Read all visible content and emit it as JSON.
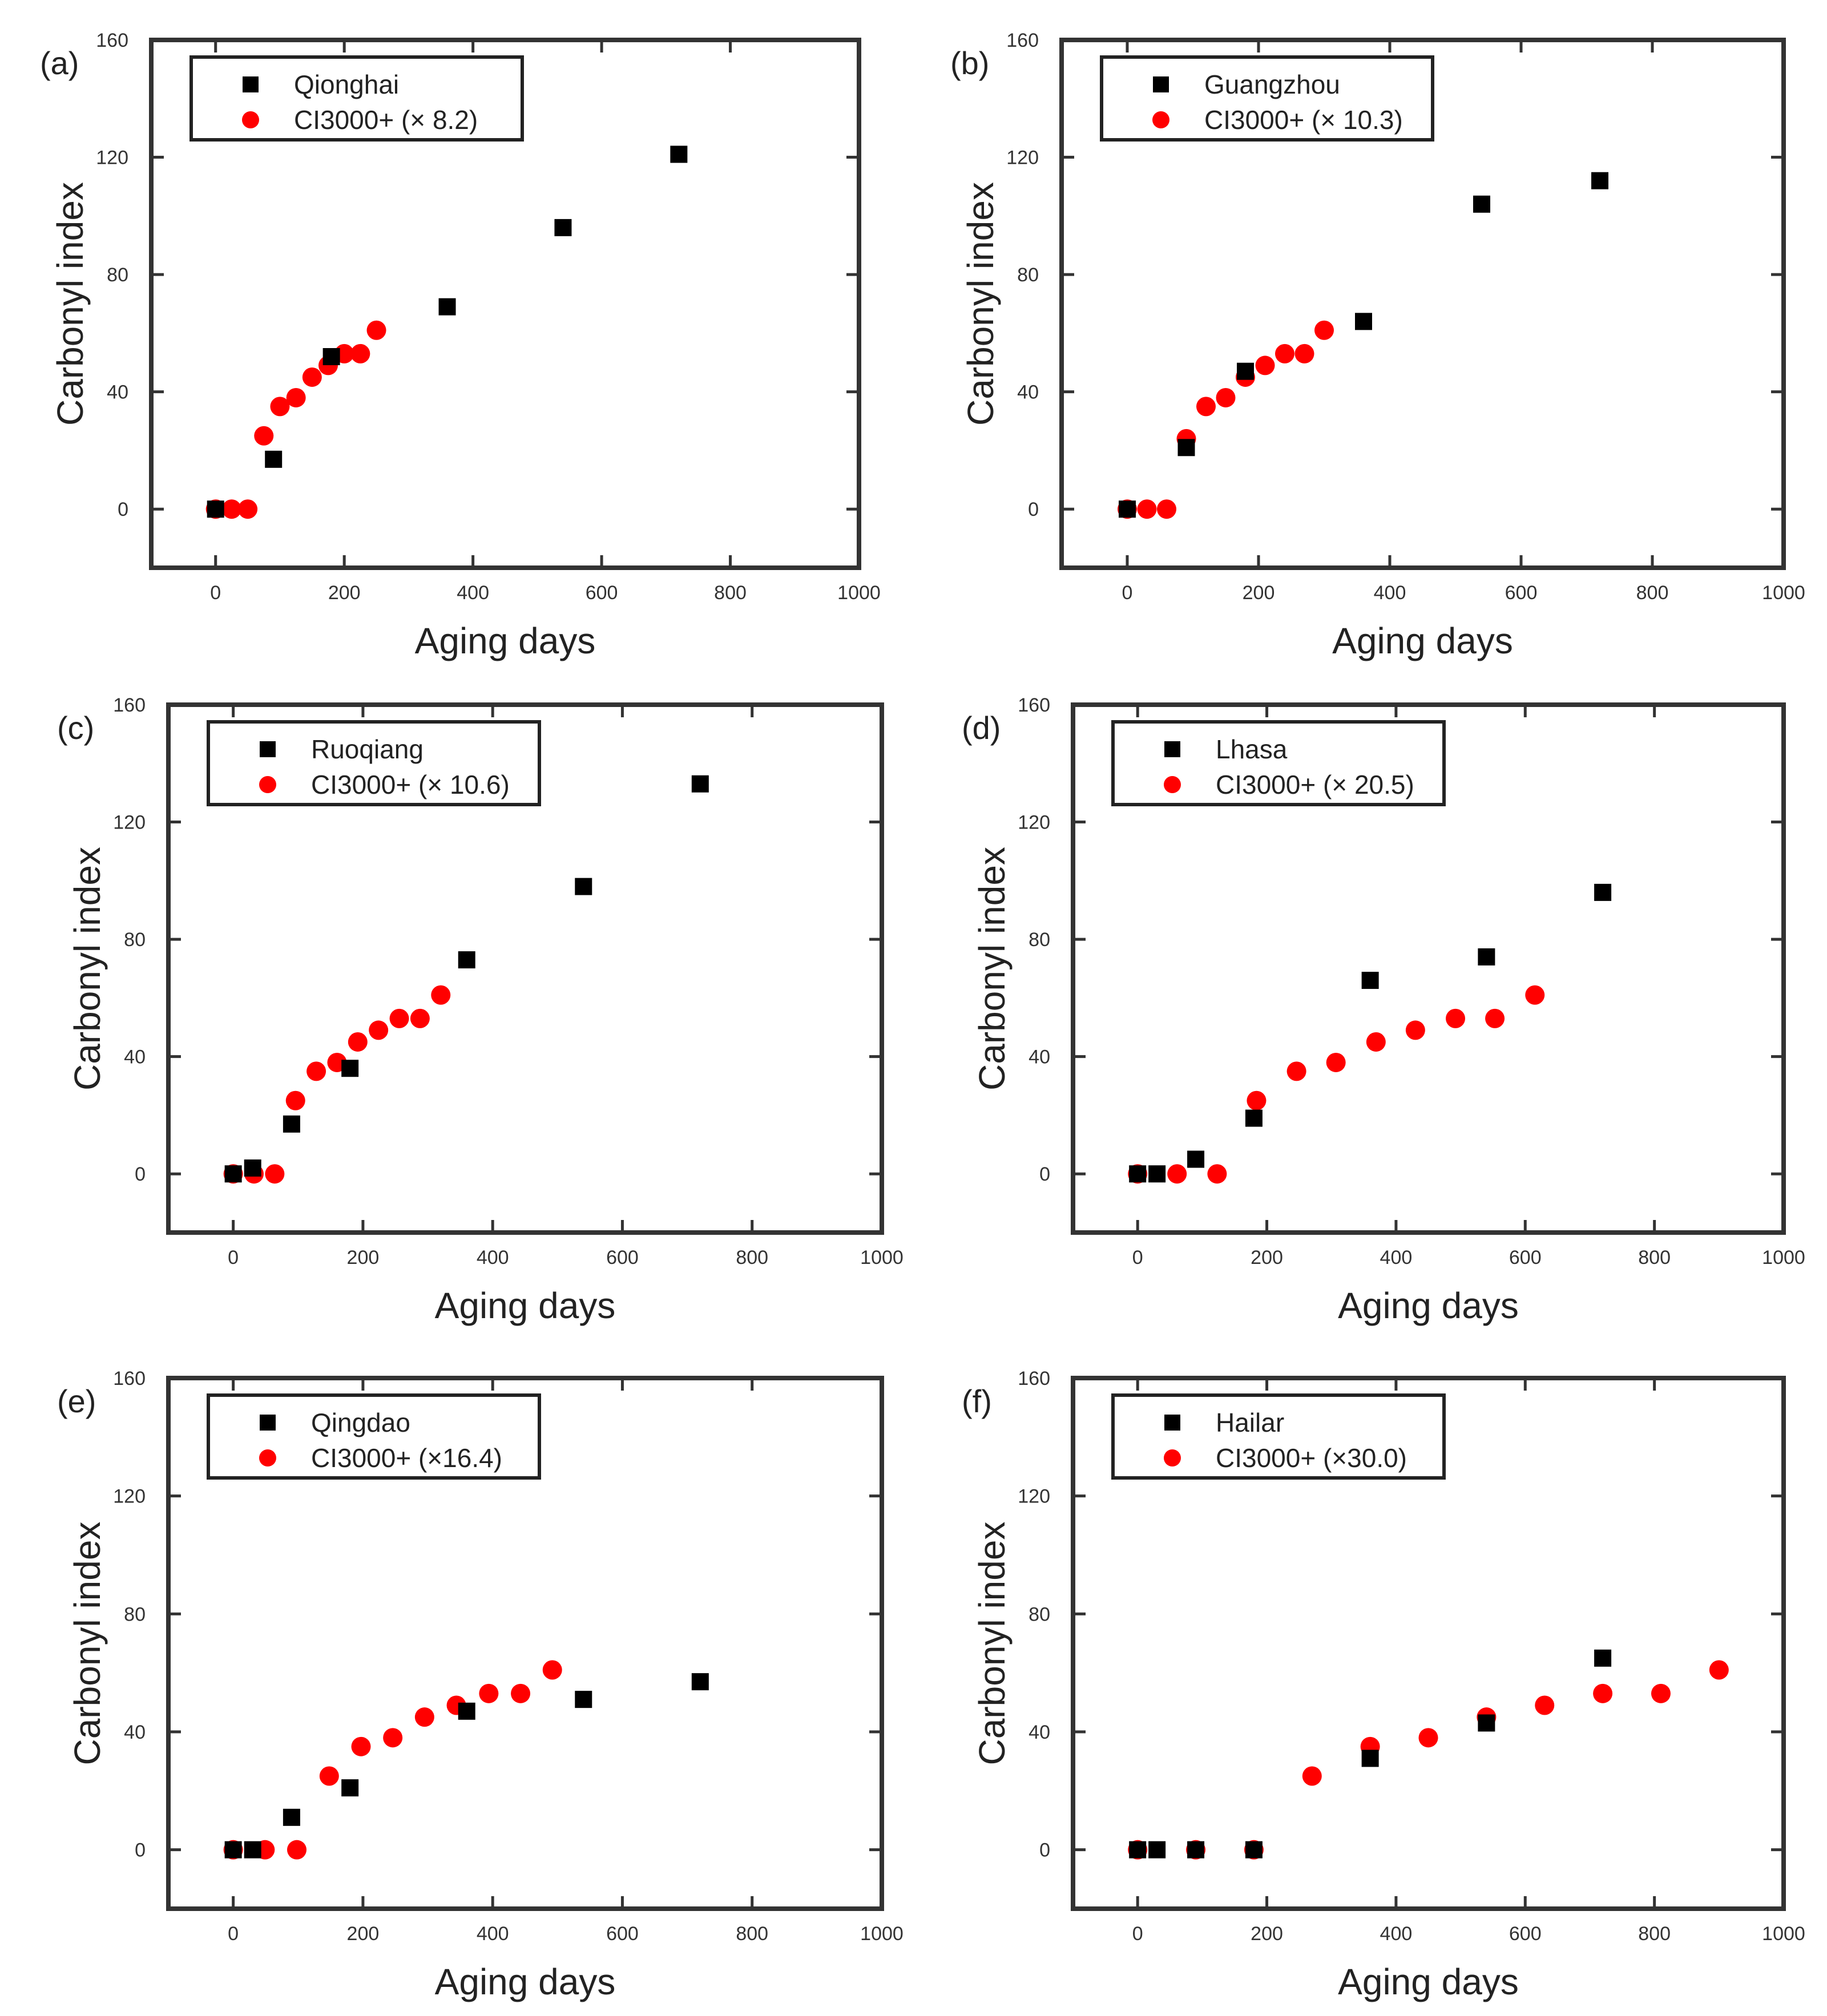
{
  "figure": {
    "background": "#ffffff"
  },
  "chart_data": [
    {
      "type": "scatter",
      "panel_label": "(a)",
      "xlabel": "Aging days",
      "ylabel": "Carbonyl index",
      "xlim": [
        -100,
        1000
      ],
      "ylim": [
        -20,
        160
      ],
      "xticks": [
        0,
        200,
        400,
        600,
        800,
        1000
      ],
      "yticks": [
        0,
        40,
        80,
        120,
        160
      ],
      "legend_position": "top-left",
      "series": [
        {
          "name": "Qionghai",
          "marker": "square",
          "color": "#000000",
          "x": [
            0,
            90,
            180,
            360,
            540,
            720
          ],
          "y": [
            0,
            17,
            52,
            69,
            96,
            121
          ]
        },
        {
          "name": "CI3000+ (× 8.2)",
          "marker": "circle",
          "color": "#ff0000",
          "x": [
            0,
            25,
            50,
            75,
            100,
            125,
            150,
            175,
            200,
            225,
            250
          ],
          "y": [
            0,
            0,
            0,
            25,
            35,
            38,
            45,
            49,
            53,
            53,
            61
          ]
        }
      ]
    },
    {
      "type": "scatter",
      "panel_label": "(b)",
      "xlabel": "Aging days",
      "ylabel": "Carbonyl index",
      "xlim": [
        -100,
        1000
      ],
      "ylim": [
        -20,
        160
      ],
      "xticks": [
        0,
        200,
        400,
        600,
        800,
        1000
      ],
      "yticks": [
        0,
        40,
        80,
        120,
        160
      ],
      "legend_position": "top-left",
      "series": [
        {
          "name": "Guangzhou",
          "marker": "square",
          "color": "#000000",
          "x": [
            0,
            90,
            180,
            360,
            540,
            720
          ],
          "y": [
            0,
            21,
            47,
            64,
            104,
            112
          ]
        },
        {
          "name": "CI3000+ (× 10.3)",
          "marker": "circle",
          "color": "#ff0000",
          "x": [
            0,
            30,
            60,
            90,
            120,
            150,
            180,
            210,
            240,
            270,
            300
          ],
          "y": [
            0,
            0,
            0,
            24,
            35,
            38,
            45,
            49,
            53,
            53,
            61
          ]
        }
      ]
    },
    {
      "type": "scatter",
      "panel_label": "(c)",
      "xlabel": "Aging days",
      "ylabel": "Carbonyl index",
      "xlim": [
        -100,
        1000
      ],
      "ylim": [
        -20,
        160
      ],
      "xticks": [
        0,
        200,
        400,
        600,
        800,
        1000
      ],
      "yticks": [
        0,
        40,
        80,
        120,
        160
      ],
      "legend_position": "top-left",
      "series": [
        {
          "name": "Ruoqiang",
          "marker": "square",
          "color": "#000000",
          "x": [
            0,
            30,
            90,
            180,
            360,
            540,
            720
          ],
          "y": [
            0,
            2,
            17,
            36,
            73,
            98,
            133
          ]
        },
        {
          "name": "CI3000+ (× 10.6)",
          "marker": "circle",
          "color": "#ff0000",
          "x": [
            0,
            32,
            64,
            96,
            128,
            160,
            192,
            224,
            256,
            288,
            320
          ],
          "y": [
            0,
            0,
            0,
            25,
            35,
            38,
            45,
            49,
            53,
            53,
            61
          ]
        }
      ]
    },
    {
      "type": "scatter",
      "panel_label": "(d)",
      "xlabel": "Aging days",
      "ylabel": "Carbonyl index",
      "xlim": [
        -100,
        1000
      ],
      "ylim": [
        -20,
        160
      ],
      "xticks": [
        0,
        200,
        400,
        600,
        800,
        1000
      ],
      "yticks": [
        0,
        40,
        80,
        120,
        160
      ],
      "legend_position": "top-left",
      "series": [
        {
          "name": "Lhasa",
          "marker": "square",
          "color": "#000000",
          "x": [
            0,
            30,
            90,
            180,
            360,
            540,
            720
          ],
          "y": [
            0,
            0,
            5,
            19,
            66,
            74,
            96
          ]
        },
        {
          "name": "CI3000+ (× 20.5)",
          "marker": "circle",
          "color": "#ff0000",
          "x": [
            0,
            61,
            123,
            184,
            246,
            307,
            369,
            430,
            492,
            553,
            615
          ],
          "y": [
            0,
            0,
            0,
            25,
            35,
            38,
            45,
            49,
            53,
            53,
            61
          ]
        }
      ]
    },
    {
      "type": "scatter",
      "panel_label": "(e)",
      "xlabel": "Aging days",
      "ylabel": "Carbonyl index",
      "xlim": [
        -100,
        1000
      ],
      "ylim": [
        -20,
        160
      ],
      "xticks": [
        0,
        200,
        400,
        600,
        800,
        1000
      ],
      "yticks": [
        0,
        40,
        80,
        120,
        160
      ],
      "legend_position": "top-left",
      "series": [
        {
          "name": "Qingdao",
          "marker": "square",
          "color": "#000000",
          "x": [
            0,
            30,
            90,
            180,
            360,
            540,
            720
          ],
          "y": [
            0,
            0,
            11,
            21,
            47,
            51,
            57
          ]
        },
        {
          "name": "CI3000+ (×16.4)",
          "marker": "circle",
          "color": "#ff0000",
          "x": [
            0,
            49,
            98,
            148,
            197,
            246,
            295,
            344,
            394,
            443,
            492
          ],
          "y": [
            0,
            0,
            0,
            25,
            35,
            38,
            45,
            49,
            53,
            53,
            61
          ]
        }
      ]
    },
    {
      "type": "scatter",
      "panel_label": "(f)",
      "xlabel": "Aging days",
      "ylabel": "Carbonyl index",
      "xlim": [
        -100,
        1000
      ],
      "ylim": [
        -20,
        160
      ],
      "xticks": [
        0,
        200,
        400,
        600,
        800,
        1000
      ],
      "yticks": [
        0,
        40,
        80,
        120,
        160
      ],
      "legend_position": "top-left",
      "series": [
        {
          "name": "Hailar",
          "marker": "square",
          "color": "#000000",
          "x": [
            0,
            30,
            90,
            180,
            360,
            540,
            720
          ],
          "y": [
            0,
            0,
            0,
            0,
            31,
            43,
            65
          ]
        },
        {
          "name": "CI3000+ (×30.0)",
          "marker": "circle",
          "color": "#ff0000",
          "x": [
            0,
            90,
            180,
            270,
            360,
            450,
            540,
            630,
            720,
            810,
            900
          ],
          "y": [
            0,
            0,
            0,
            25,
            35,
            38,
            45,
            49,
            53,
            53,
            61
          ]
        }
      ]
    }
  ]
}
